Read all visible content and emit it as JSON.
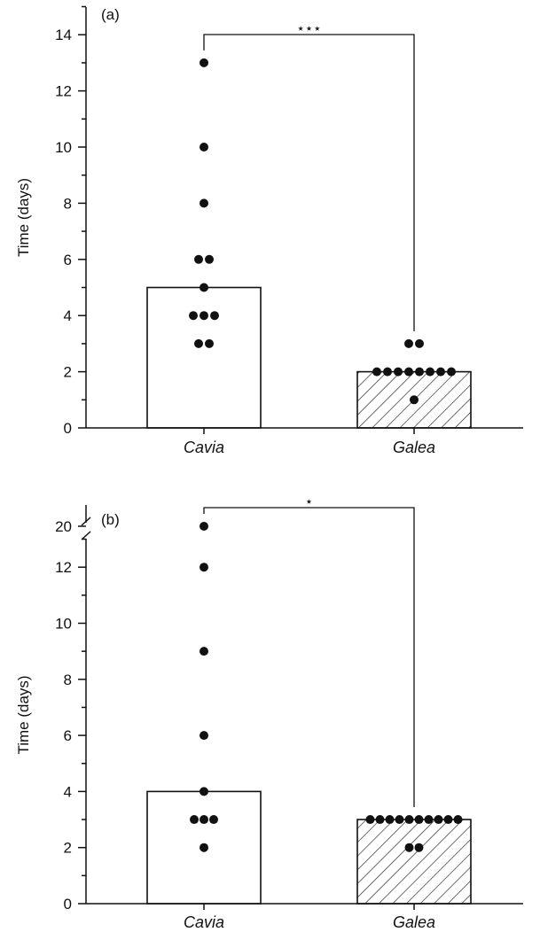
{
  "chart_data": [
    {
      "type": "bar",
      "panel_label": "(a)",
      "ylabel": "Time (days)",
      "ylim": [
        0,
        15
      ],
      "yticks": [
        0,
        2,
        4,
        6,
        8,
        10,
        12,
        14
      ],
      "ytick_labels": [
        "0",
        "2",
        "4",
        "6",
        "8",
        "10",
        "12",
        "14"
      ],
      "categories": [
        "Cavia",
        "Galea"
      ],
      "values": [
        5,
        2
      ],
      "bar_styles": [
        "open",
        "hatched"
      ],
      "points": [
        [
          13,
          10,
          8,
          6,
          6,
          5,
          4,
          4,
          4,
          3,
          3
        ],
        [
          3,
          3,
          2,
          2,
          2,
          2,
          2,
          2,
          2,
          2,
          1
        ]
      ],
      "significance": "⋆⋆⋆",
      "axis_break": false,
      "grid": false
    },
    {
      "type": "bar",
      "panel_label": "(b)",
      "ylabel": "Time (days)",
      "ylim": [
        0,
        14
      ],
      "yticks": [
        0,
        2,
        4,
        6,
        8,
        10,
        12
      ],
      "ytick_labels": [
        "0",
        "2",
        "4",
        "6",
        "8",
        "10",
        "12"
      ],
      "break_tick_label": "20",
      "break_value": 20,
      "categories": [
        "Cavia",
        "Galea"
      ],
      "values": [
        4,
        3
      ],
      "bar_styles": [
        "open",
        "hatched"
      ],
      "points": [
        [
          20,
          12,
          9,
          6,
          4,
          3,
          3,
          3,
          2
        ],
        [
          3,
          3,
          3,
          3,
          3,
          3,
          3,
          3,
          3,
          3,
          2,
          2
        ]
      ],
      "significance": "⋆",
      "axis_break": true,
      "grid": false
    }
  ]
}
